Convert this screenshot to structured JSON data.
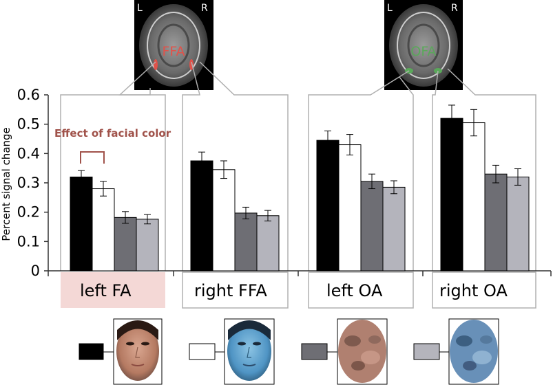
{
  "chart_data": {
    "type": "bar",
    "ylabel": "Percent signal change",
    "ylim": [
      0,
      0.6
    ],
    "yticks": [
      "0",
      "0.1",
      "0.2",
      "0.3",
      "0.4",
      "0.5",
      "0.6"
    ],
    "ytick_values": [
      0,
      0.1,
      0.2,
      0.3,
      0.4,
      0.5,
      0.6
    ],
    "categories": [
      "left FA",
      "right FFA",
      "left OA",
      "right OA"
    ],
    "series": [
      {
        "values": [
          0.32,
          0.375,
          0.445,
          0.52
        ],
        "errors": [
          0.022,
          0.03,
          0.032,
          0.045
        ],
        "color": "#000000"
      },
      {
        "values": [
          0.28,
          0.345,
          0.43,
          0.505
        ],
        "errors": [
          0.025,
          0.03,
          0.035,
          0.045
        ],
        "color": "#ffffff"
      },
      {
        "values": [
          0.182,
          0.197,
          0.305,
          0.33
        ],
        "errors": [
          0.02,
          0.02,
          0.025,
          0.03
        ],
        "color": "#6e6e74"
      },
      {
        "values": [
          0.176,
          0.188,
          0.285,
          0.32
        ],
        "errors": [
          0.016,
          0.018,
          0.022,
          0.028
        ],
        "color": "#b4b4bc"
      }
    ],
    "annotation": "Effect of facial color",
    "highlight_category": "left FA",
    "highlight_color": "#f4d8d6"
  },
  "brains": [
    {
      "label": "FFA",
      "left": "L",
      "right": "R",
      "color": "#e0524a"
    },
    {
      "label": "OFA",
      "left": "L",
      "right": "R",
      "color": "#5aa85a"
    }
  ],
  "legend_colors": [
    "#000000",
    "#ffffff",
    "#6e6e74",
    "#b4b4bc"
  ]
}
